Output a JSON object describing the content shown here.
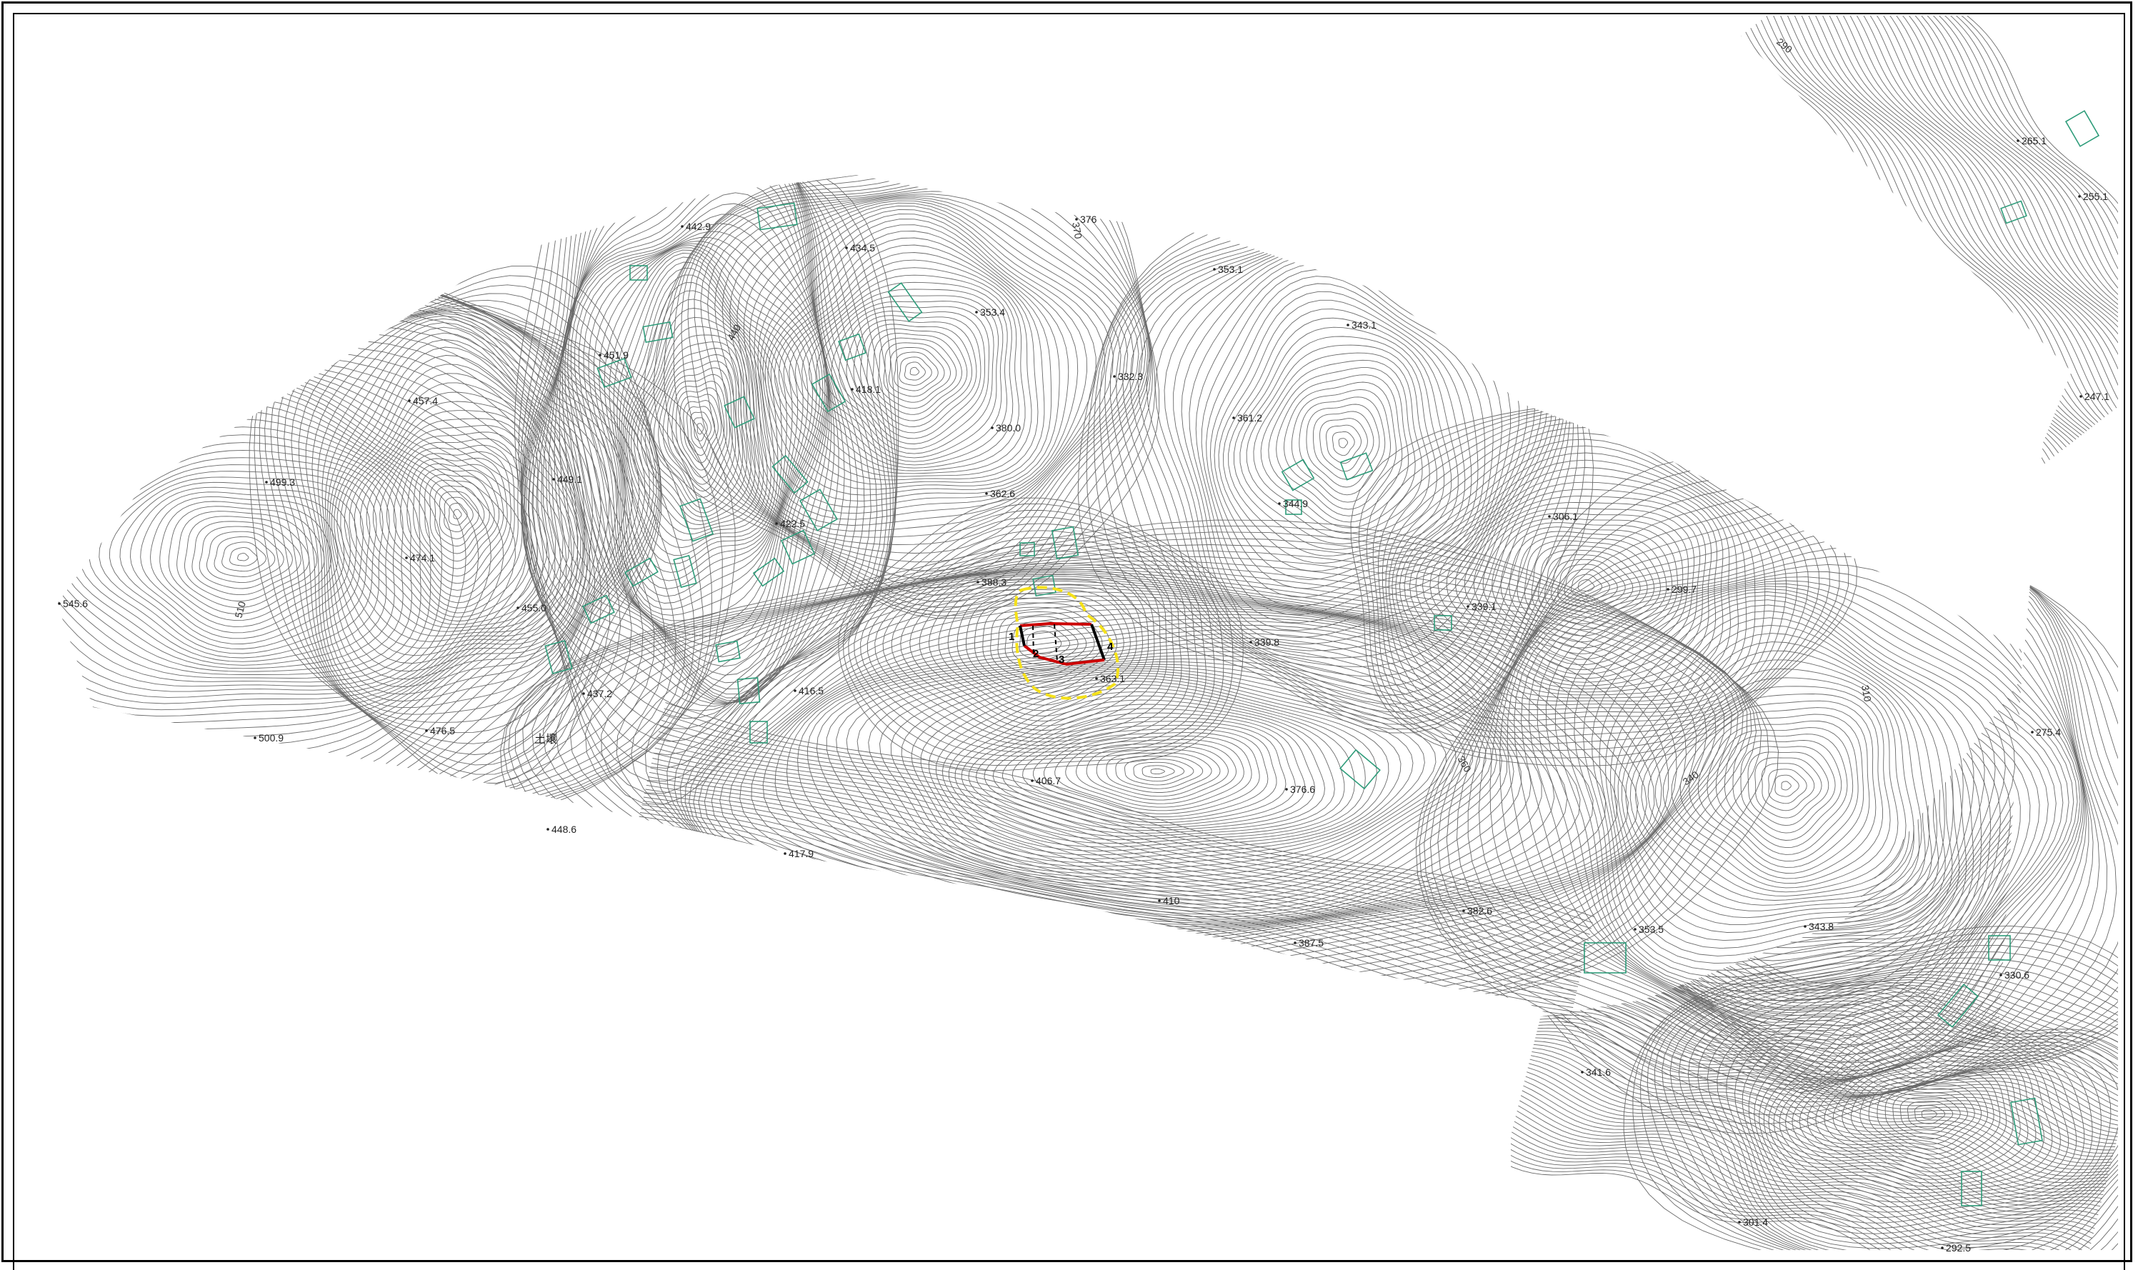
{
  "map": {
    "colors": {
      "background": "#ffffff",
      "contour": "#6a6a6a",
      "building": "#2e9c7a",
      "parcel_outline_red": "#cc0000",
      "parcel_outline_black": "#000000",
      "buffer_outline_yellow": "#f5e11a",
      "frame": "#000000"
    },
    "elevation_labels": [
      "442.9",
      "434.5",
      "451.9",
      "457.4",
      "418.1",
      "353.4",
      "376",
      "353.1",
      "343.1",
      "332.3",
      "380.0",
      "361.2",
      "499.3",
      "449.1",
      "474.1",
      "422.5",
      "362.6",
      "344.9",
      "306.1",
      "545.6",
      "455.0",
      "388.3",
      "339.1",
      "299.7",
      "339.8",
      "363.1",
      "437.2",
      "416.5",
      "476.5",
      "500.9",
      "406.7",
      "376.6",
      "448.6",
      "417.9",
      "410",
      "382.6",
      "387.5",
      "353.5",
      "343.8",
      "330.6",
      "341.6",
      "301.4",
      "292.5",
      "265.1",
      "255.1",
      "247.1",
      "275.4"
    ],
    "contour_labels": [
      "440",
      "510",
      "370",
      "360",
      "340",
      "310",
      "290"
    ],
    "place_label": "土壌",
    "parcel_vertex_labels": [
      "1",
      "2",
      "3",
      "4"
    ]
  }
}
